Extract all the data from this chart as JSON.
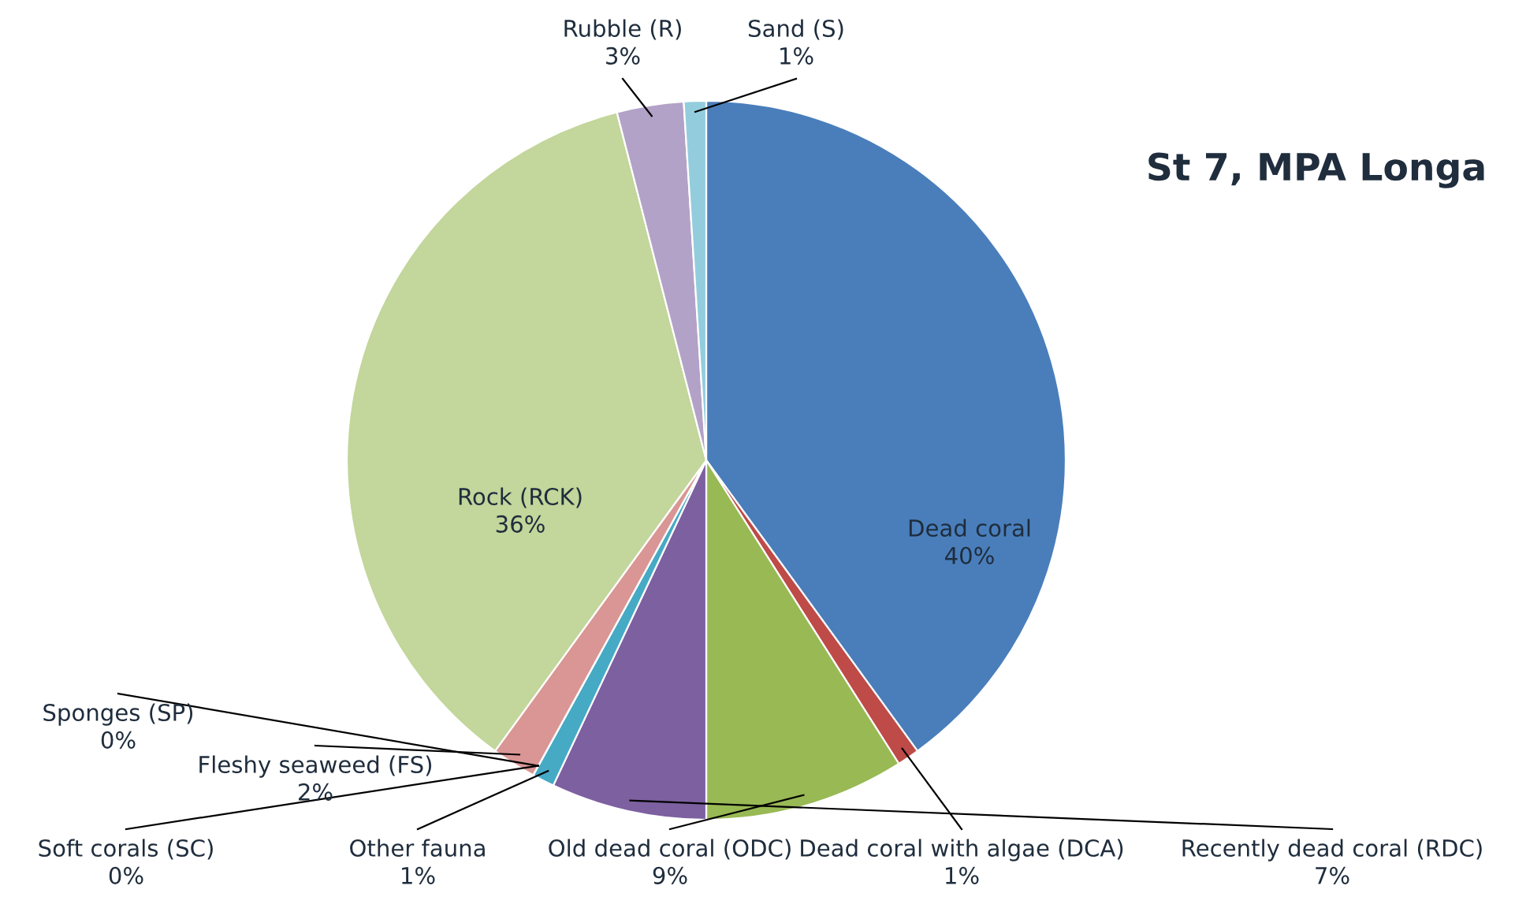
{
  "chart_data": {
    "type": "pie",
    "title": "St 7, MPA Longa",
    "categories": [
      "Dead coral",
      "Dead coral with algae (DCA)",
      "Old dead coral (ODC)",
      "Recently dead coral (RDC)",
      "Other fauna",
      "Soft corals (SC)",
      "Sponges (SP)",
      "Fleshy seaweed (FS)",
      "Rock (RCK)",
      "Rubble (R)",
      "Sand (S)"
    ],
    "values": [
      40,
      1,
      9,
      7,
      1,
      0,
      0,
      2,
      36,
      3,
      1
    ],
    "colors": [
      "#4a7ebb",
      "#be4b48",
      "#98b954",
      "#7d60a0",
      "#46aac5",
      "#f59d56",
      "#8064a2",
      "#d99694",
      "#c3d69b",
      "#b3a2c7",
      "#93cddd"
    ],
    "value_labels": [
      "40%",
      "1%",
      "9%",
      "7%",
      "1%",
      "0%",
      "0%",
      "2%",
      "36%",
      "3%",
      "1%"
    ],
    "legend": false
  }
}
